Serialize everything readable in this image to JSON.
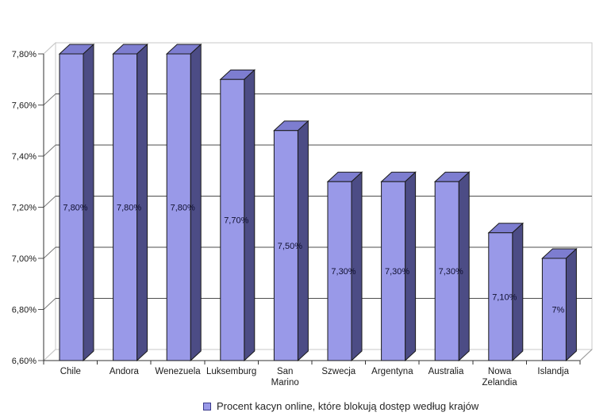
{
  "chart_data": {
    "type": "bar",
    "projection": "3d",
    "title": "",
    "categories": [
      "Chile",
      "Andora",
      "Wenezuela",
      "Luksemburg",
      "San Marino",
      "Szwecja",
      "Argentyna",
      "Australia",
      "Nowa Zelandia",
      "Islandja"
    ],
    "values": [
      7.8,
      7.8,
      7.8,
      7.7,
      7.5,
      7.3,
      7.3,
      7.3,
      7.1,
      7.0
    ],
    "value_labels": [
      "7,80%",
      "7,80%",
      "7,80%",
      "7,70%",
      "7,50%",
      "7,30%",
      "7,30%",
      "7,30%",
      "7,10%",
      "7%"
    ],
    "xlabel": "",
    "ylabel": "",
    "y_axis": {
      "min": 6.6,
      "max": 7.8,
      "step": 0.2,
      "tick_labels": [
        "6,60%",
        "6,80%",
        "7,00%",
        "7,20%",
        "7,40%",
        "7,60%",
        "7,80%"
      ]
    },
    "grid": true,
    "legend": {
      "position": "bottom",
      "label": "Procent kacyn online, które blokują dostęp według krajów"
    },
    "style": {
      "bar_front": "#9999e8",
      "bar_side": "#4c4c85",
      "bar_top": "#7d7dd0",
      "bar_outline": "#1a1a1a",
      "grid_color": "#4d4d4d",
      "wall_edge": "#c8c8c8",
      "axis_color": "#333333",
      "value_label_color": "#101030",
      "text_color": "#1a1a1a",
      "legend_marker_border": "#3a3a8c"
    }
  }
}
